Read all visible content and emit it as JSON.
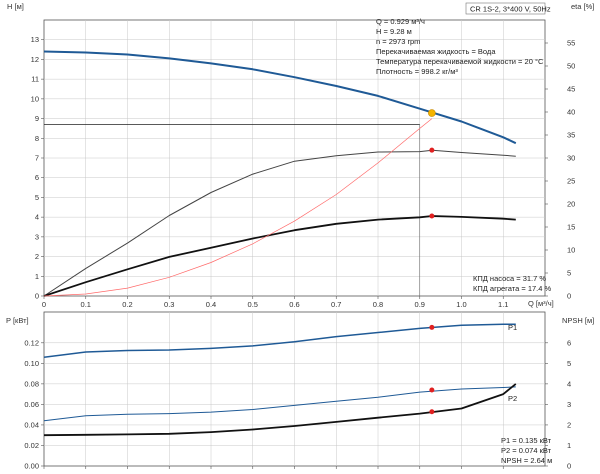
{
  "title": "CR 1S-2, 3*400 V, 50Hz",
  "info_lines": [
    "Q = 0.929 м³/ч",
    "H = 9.28 м",
    "n = 2973 rpm",
    "Перекачиваемая жидкость = Вода",
    "Температура перекачиваемой жидкости = 20 °C",
    "Плотность = 998.2 кг/м³"
  ],
  "eff_labels": [
    "КПД насоса = 31.7 %",
    "КПД агрегата = 17.4 %"
  ],
  "power_labels": [
    "P1 = 0.135 кВт",
    "P2 = 0.074 кВт",
    "NPSH = 2.64 м"
  ],
  "chart_data": [
    {
      "type": "line",
      "panel": "top",
      "xlabel": "Q [м³/ч]",
      "ylabel_left": "H [м]",
      "ylabel_right": "eta [%]",
      "xlim": [
        0,
        1.2
      ],
      "ylim": [
        0,
        14
      ],
      "ylim_right": [
        0,
        60
      ],
      "x_ticks": [
        "0",
        "0.1",
        "0.2",
        "0.3",
        "0.4",
        "0.5",
        "0.6",
        "0.7",
        "0.8",
        "0.9",
        "1.0",
        "1.1"
      ],
      "y_ticks": [
        "0",
        "1",
        "2",
        "3",
        "4",
        "5",
        "6",
        "7",
        "8",
        "9",
        "10",
        "11",
        "12",
        "13"
      ],
      "y_right_ticks": [
        "0",
        "5",
        "10",
        "15",
        "20",
        "25",
        "30",
        "35",
        "40",
        "45",
        "50",
        "55"
      ],
      "series": [
        {
          "id": "head",
          "axis": "left",
          "color": "#1f5a96",
          "width": 2.0,
          "x": [
            0,
            0.1,
            0.2,
            0.3,
            0.4,
            0.5,
            0.6,
            0.7,
            0.8,
            0.9,
            1.0,
            1.1,
            1.13
          ],
          "y": [
            12.4,
            12.35,
            12.25,
            12.05,
            11.8,
            11.5,
            11.1,
            10.65,
            10.15,
            9.5,
            8.85,
            8.05,
            7.75
          ]
        },
        {
          "id": "pump-eff",
          "axis": "right",
          "color": "#444444",
          "width": 1.0,
          "x": [
            0,
            0.1,
            0.2,
            0.3,
            0.4,
            0.5,
            0.6,
            0.7,
            0.8,
            0.9,
            0.93,
            1.0,
            1.1,
            1.13
          ],
          "y": [
            0,
            6,
            11.5,
            17.5,
            22.5,
            26.5,
            29.3,
            30.5,
            31.3,
            31.4,
            31.7,
            31.2,
            30.6,
            30.4
          ]
        },
        {
          "id": "unit-eff",
          "axis": "right",
          "color": "#111111",
          "width": 1.8,
          "x": [
            0,
            0.1,
            0.2,
            0.3,
            0.4,
            0.5,
            0.6,
            0.7,
            0.8,
            0.9,
            0.93,
            1.0,
            1.1,
            1.13
          ],
          "y": [
            0,
            3,
            5.8,
            8.5,
            10.5,
            12.5,
            14.3,
            15.7,
            16.6,
            17.1,
            17.4,
            17.2,
            16.8,
            16.6
          ]
        },
        {
          "id": "system-curve",
          "axis": "left",
          "color": "#ff6a6a",
          "width": 0.7,
          "x": [
            0,
            0.1,
            0.2,
            0.3,
            0.4,
            0.5,
            0.6,
            0.7,
            0.8,
            0.9,
            0.929
          ],
          "y": [
            0,
            0.1,
            0.4,
            0.95,
            1.7,
            2.65,
            3.8,
            5.15,
            6.75,
            8.5,
            9.0
          ]
        }
      ],
      "guide": {
        "x": 0.9,
        "y": 8.7
      },
      "markers": [
        {
          "id": "duty-point",
          "axis": "left",
          "x": 0.929,
          "y": 9.28,
          "color": "#f4b400"
        },
        {
          "id": "pump-eff-point",
          "axis": "right",
          "x": 0.929,
          "y": 31.7,
          "color": "#e02020"
        },
        {
          "id": "unit-eff-point",
          "axis": "right",
          "x": 0.929,
          "y": 17.4,
          "color": "#e02020"
        }
      ]
    },
    {
      "type": "line",
      "panel": "bottom",
      "xlabel": "",
      "ylabel_left": "P [кВт]",
      "ylabel_right": "NPSH [м]",
      "xlim": [
        0,
        1.2
      ],
      "ylim": [
        0,
        0.15
      ],
      "ylim_right": [
        0,
        7.5
      ],
      "y_ticks": [
        "0.00",
        "0.02",
        "0.04",
        "0.06",
        "0.08",
        "0.10",
        "0.12"
      ],
      "y_right_ticks": [
        "0",
        "1",
        "2",
        "3",
        "4",
        "5",
        "6"
      ],
      "series": [
        {
          "id": "P1",
          "name": "P1",
          "axis": "left",
          "color": "#1f5a96",
          "width": 1.5,
          "x": [
            0,
            0.1,
            0.2,
            0.3,
            0.4,
            0.5,
            0.6,
            0.7,
            0.8,
            0.9,
            1.0,
            1.1,
            1.13
          ],
          "y": [
            0.106,
            0.111,
            0.1125,
            0.113,
            0.1145,
            0.117,
            0.121,
            0.126,
            0.13,
            0.134,
            0.137,
            0.138,
            0.138
          ]
        },
        {
          "id": "P2",
          "name": "P2",
          "axis": "left",
          "color": "#1f5a96",
          "width": 1.0,
          "x": [
            0,
            0.1,
            0.2,
            0.3,
            0.4,
            0.5,
            0.6,
            0.7,
            0.8,
            0.9,
            1.0,
            1.1,
            1.13
          ],
          "y": [
            0.044,
            0.049,
            0.0505,
            0.051,
            0.0525,
            0.055,
            0.059,
            0.063,
            0.067,
            0.072,
            0.075,
            0.0765,
            0.077
          ]
        },
        {
          "id": "NPSH",
          "axis": "right",
          "color": "#111111",
          "width": 1.8,
          "x": [
            0,
            0.1,
            0.2,
            0.3,
            0.4,
            0.5,
            0.6,
            0.7,
            0.8,
            0.9,
            1.0,
            1.1,
            1.13
          ],
          "y": [
            1.5,
            1.52,
            1.54,
            1.57,
            1.65,
            1.78,
            1.95,
            2.15,
            2.35,
            2.55,
            2.8,
            3.5,
            4.0
          ]
        }
      ],
      "markers": [
        {
          "id": "P1-point",
          "axis": "left",
          "x": 0.929,
          "y": 0.135,
          "color": "#e02020"
        },
        {
          "id": "P2-point",
          "axis": "left",
          "x": 0.929,
          "y": 0.074,
          "color": "#e02020"
        },
        {
          "id": "NPSH-point",
          "axis": "right",
          "x": 0.929,
          "y": 2.64,
          "color": "#e02020"
        }
      ]
    }
  ]
}
